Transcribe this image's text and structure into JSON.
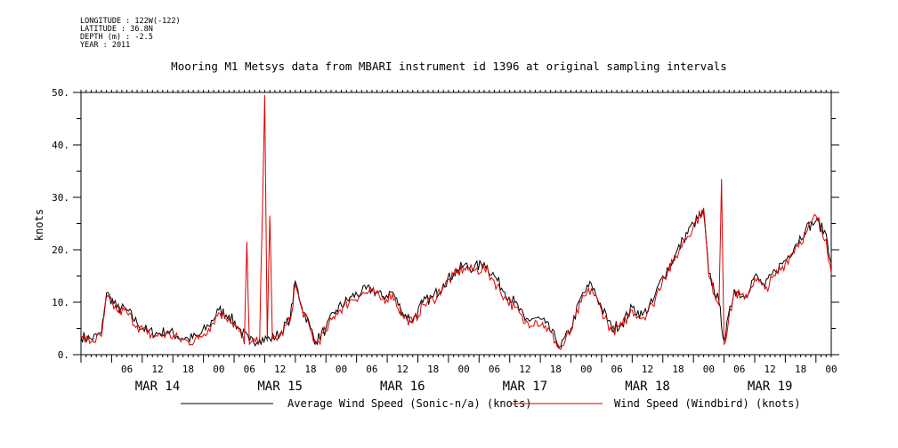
{
  "meta": {
    "longitude": "LONGITUDE : 122W(-122)",
    "latitude": "LATITUDE : 36.8N",
    "depth": "DEPTH (m) : -2.5",
    "year": "YEAR : 2011"
  },
  "chart_data": {
    "type": "line",
    "title": "Mooring M1 Metsys data from MBARI instrument id 1396 at original sampling intervals",
    "ylabel": "knots",
    "xlabel": "",
    "xlim": [
      "2011-03-13T21:00",
      "2011-03-20T00:00"
    ],
    "ylim": [
      0,
      50
    ],
    "y_ticks": [
      "0.",
      "10.",
      "20.",
      "30.",
      "40.",
      "50."
    ],
    "x_hour_labels": [
      "06",
      "12",
      "18",
      "00",
      "06",
      "12",
      "18",
      "00",
      "06",
      "12",
      "18",
      "00",
      "06",
      "12",
      "18",
      "00",
      "06",
      "12",
      "18",
      "00",
      "06",
      "12",
      "18",
      "00"
    ],
    "x_day_labels": [
      "MAR 14",
      "MAR 15",
      "MAR 16",
      "MAR 17",
      "MAR 18",
      "MAR 19"
    ],
    "grid": false,
    "legend_position": "bottom",
    "series": [
      {
        "name": "Average Wind Speed (Sonic-n/a) (knots)",
        "color": "#000000",
        "points": [
          [
            "2011-03-13T21:00",
            3.5
          ],
          [
            "2011-03-13T23:00",
            3
          ],
          [
            "2011-03-14T01:00",
            4
          ],
          [
            "2011-03-14T02:00",
            11.8
          ],
          [
            "2011-03-14T04:00",
            9
          ],
          [
            "2011-03-14T06:00",
            8.5
          ],
          [
            "2011-03-14T08:00",
            6
          ],
          [
            "2011-03-14T10:00",
            4.5
          ],
          [
            "2011-03-14T12:00",
            4
          ],
          [
            "2011-03-14T14:00",
            4.5
          ],
          [
            "2011-03-14T16:00",
            3.5
          ],
          [
            "2011-03-14T18:00",
            3
          ],
          [
            "2011-03-14T20:00",
            3.5
          ],
          [
            "2011-03-14T22:00",
            5.5
          ],
          [
            "2011-03-15T00:00",
            8.5
          ],
          [
            "2011-03-15T02:00",
            7.5
          ],
          [
            "2011-03-15T04:00",
            5
          ],
          [
            "2011-03-15T06:00",
            2.5
          ],
          [
            "2011-03-15T08:00",
            3
          ],
          [
            "2011-03-15T10:00",
            3
          ],
          [
            "2011-03-15T12:00",
            4
          ],
          [
            "2011-03-15T14:00",
            7
          ],
          [
            "2011-03-15T15:00",
            14
          ],
          [
            "2011-03-15T16:00",
            10
          ],
          [
            "2011-03-15T18:00",
            5
          ],
          [
            "2011-03-15T19:00",
            2.5
          ],
          [
            "2011-03-15T21:00",
            5
          ],
          [
            "2011-03-15T23:00",
            8.5
          ],
          [
            "2011-03-16T02:00",
            11
          ],
          [
            "2011-03-16T04:00",
            12
          ],
          [
            "2011-03-16T06:00",
            12.5
          ],
          [
            "2011-03-16T08:00",
            11
          ],
          [
            "2011-03-16T10:00",
            12
          ],
          [
            "2011-03-16T12:00",
            8
          ],
          [
            "2011-03-16T14:00",
            6.5
          ],
          [
            "2011-03-16T16:00",
            10
          ],
          [
            "2011-03-16T18:00",
            11
          ],
          [
            "2011-03-16T20:00",
            13.5
          ],
          [
            "2011-03-16T22:00",
            15.5
          ],
          [
            "2011-03-17T00:00",
            17
          ],
          [
            "2011-03-17T02:00",
            16.5
          ],
          [
            "2011-03-17T04:00",
            17.5
          ],
          [
            "2011-03-17T06:00",
            15
          ],
          [
            "2011-03-17T08:00",
            12
          ],
          [
            "2011-03-17T10:00",
            10
          ],
          [
            "2011-03-17T12:00",
            6.5
          ],
          [
            "2011-03-17T14:00",
            7
          ],
          [
            "2011-03-17T16:00",
            6
          ],
          [
            "2011-03-17T18:00",
            3
          ],
          [
            "2011-03-17T19:00",
            1.5
          ],
          [
            "2011-03-17T21:00",
            5
          ],
          [
            "2011-03-17T23:00",
            11
          ],
          [
            "2011-03-18T01:00",
            13.5
          ],
          [
            "2011-03-18T03:00",
            9
          ],
          [
            "2011-03-18T05:00",
            5
          ],
          [
            "2011-03-18T07:00",
            6
          ],
          [
            "2011-03-18T09:00",
            9
          ],
          [
            "2011-03-18T11:00",
            7.5
          ],
          [
            "2011-03-18T13:00",
            10
          ],
          [
            "2011-03-18T15:00",
            15
          ],
          [
            "2011-03-18T17:00",
            18
          ],
          [
            "2011-03-18T19:00",
            22
          ],
          [
            "2011-03-18T21:00",
            25
          ],
          [
            "2011-03-18T23:00",
            27
          ],
          [
            "2011-03-19T00:00",
            15.5
          ],
          [
            "2011-03-19T02:00",
            10
          ],
          [
            "2011-03-19T03:00",
            2.5
          ],
          [
            "2011-03-19T05:00",
            12.5
          ],
          [
            "2011-03-19T07:00",
            11
          ],
          [
            "2011-03-19T09:00",
            15
          ],
          [
            "2011-03-19T11:00",
            13
          ],
          [
            "2011-03-19T13:00",
            16
          ],
          [
            "2011-03-19T15:00",
            18
          ],
          [
            "2011-03-19T17:00",
            21
          ],
          [
            "2011-03-19T19:00",
            24
          ],
          [
            "2011-03-19T21:00",
            25.5
          ],
          [
            "2011-03-19T23:00",
            23
          ],
          [
            "2011-03-20T00:00",
            17.5
          ]
        ]
      },
      {
        "name": "Wind Speed (Windbird) (knots)",
        "color": "#dd0000",
        "points": [
          [
            "2011-03-13T21:00",
            3
          ],
          [
            "2011-03-13T23:00",
            2.5
          ],
          [
            "2011-03-14T01:00",
            3.5
          ],
          [
            "2011-03-14T02:00",
            11
          ],
          [
            "2011-03-14T04:00",
            8.5
          ],
          [
            "2011-03-14T06:00",
            8
          ],
          [
            "2011-03-14T08:00",
            5.5
          ],
          [
            "2011-03-14T10:00",
            4
          ],
          [
            "2011-03-14T12:00",
            3.5
          ],
          [
            "2011-03-14T14:00",
            4
          ],
          [
            "2011-03-14T16:00",
            3
          ],
          [
            "2011-03-14T18:00",
            2.5
          ],
          [
            "2011-03-14T20:00",
            3
          ],
          [
            "2011-03-14T22:00",
            5
          ],
          [
            "2011-03-15T00:00",
            8
          ],
          [
            "2011-03-15T02:00",
            7
          ],
          [
            "2011-03-15T04:00",
            4.5
          ],
          [
            "2011-03-15T05:00",
            2
          ],
          [
            "2011-03-15T05:30",
            21.5
          ],
          [
            "2011-03-15T06:00",
            2
          ],
          [
            "2011-03-15T08:00",
            2.5
          ],
          [
            "2011-03-15T09:00",
            49.5
          ],
          [
            "2011-03-15T09:30",
            2.5
          ],
          [
            "2011-03-15T10:00",
            26.5
          ],
          [
            "2011-03-15T10:30",
            3
          ],
          [
            "2011-03-15T12:00",
            3.5
          ],
          [
            "2011-03-15T14:00",
            6.5
          ],
          [
            "2011-03-15T15:00",
            13.5
          ],
          [
            "2011-03-15T16:00",
            9.5
          ],
          [
            "2011-03-15T18:00",
            4.5
          ],
          [
            "2011-03-15T19:00",
            2
          ],
          [
            "2011-03-15T21:00",
            4.5
          ],
          [
            "2011-03-15T23:00",
            8
          ],
          [
            "2011-03-16T02:00",
            10.5
          ],
          [
            "2011-03-16T04:00",
            11.5
          ],
          [
            "2011-03-16T06:00",
            12
          ],
          [
            "2011-03-16T08:00",
            10.5
          ],
          [
            "2011-03-16T10:00",
            11.5
          ],
          [
            "2011-03-16T12:00",
            7.5
          ],
          [
            "2011-03-16T14:00",
            6
          ],
          [
            "2011-03-16T16:00",
            9.5
          ],
          [
            "2011-03-16T18:00",
            10.5
          ],
          [
            "2011-03-16T20:00",
            13
          ],
          [
            "2011-03-16T22:00",
            15
          ],
          [
            "2011-03-17T00:00",
            16.5
          ],
          [
            "2011-03-17T02:00",
            16
          ],
          [
            "2011-03-17T04:00",
            16.5
          ],
          [
            "2011-03-17T06:00",
            14
          ],
          [
            "2011-03-17T08:00",
            11
          ],
          [
            "2011-03-17T10:00",
            9
          ],
          [
            "2011-03-17T12:00",
            6
          ],
          [
            "2011-03-17T14:00",
            6.5
          ],
          [
            "2011-03-17T16:00",
            5.5
          ],
          [
            "2011-03-17T18:00",
            2.5
          ],
          [
            "2011-03-17T19:00",
            1
          ],
          [
            "2011-03-17T21:00",
            4.5
          ],
          [
            "2011-03-17T23:00",
            10
          ],
          [
            "2011-03-18T01:00",
            12.5
          ],
          [
            "2011-03-18T03:00",
            8.5
          ],
          [
            "2011-03-18T05:00",
            4.5
          ],
          [
            "2011-03-18T07:00",
            5.5
          ],
          [
            "2011-03-18T09:00",
            8.5
          ],
          [
            "2011-03-18T11:00",
            7
          ],
          [
            "2011-03-18T13:00",
            9.5
          ],
          [
            "2011-03-18T15:00",
            14.5
          ],
          [
            "2011-03-18T17:00",
            17.5
          ],
          [
            "2011-03-18T19:00",
            21.5
          ],
          [
            "2011-03-18T21:00",
            24.5
          ],
          [
            "2011-03-18T23:00",
            28
          ],
          [
            "2011-03-19T00:00",
            15
          ],
          [
            "2011-03-19T02:00",
            9.5
          ],
          [
            "2011-03-19T02:30",
            33.5
          ],
          [
            "2011-03-19T03:00",
            2
          ],
          [
            "2011-03-19T05:00",
            12
          ],
          [
            "2011-03-19T07:00",
            10.5
          ],
          [
            "2011-03-19T09:00",
            14.5
          ],
          [
            "2011-03-19T11:00",
            12.5
          ],
          [
            "2011-03-19T13:00",
            15
          ],
          [
            "2011-03-19T15:00",
            17.5
          ],
          [
            "2011-03-19T17:00",
            20.5
          ],
          [
            "2011-03-19T19:00",
            23
          ],
          [
            "2011-03-19T21:00",
            26.5
          ],
          [
            "2011-03-19T23:00",
            22
          ],
          [
            "2011-03-20T00:00",
            15.5
          ]
        ]
      }
    ]
  }
}
